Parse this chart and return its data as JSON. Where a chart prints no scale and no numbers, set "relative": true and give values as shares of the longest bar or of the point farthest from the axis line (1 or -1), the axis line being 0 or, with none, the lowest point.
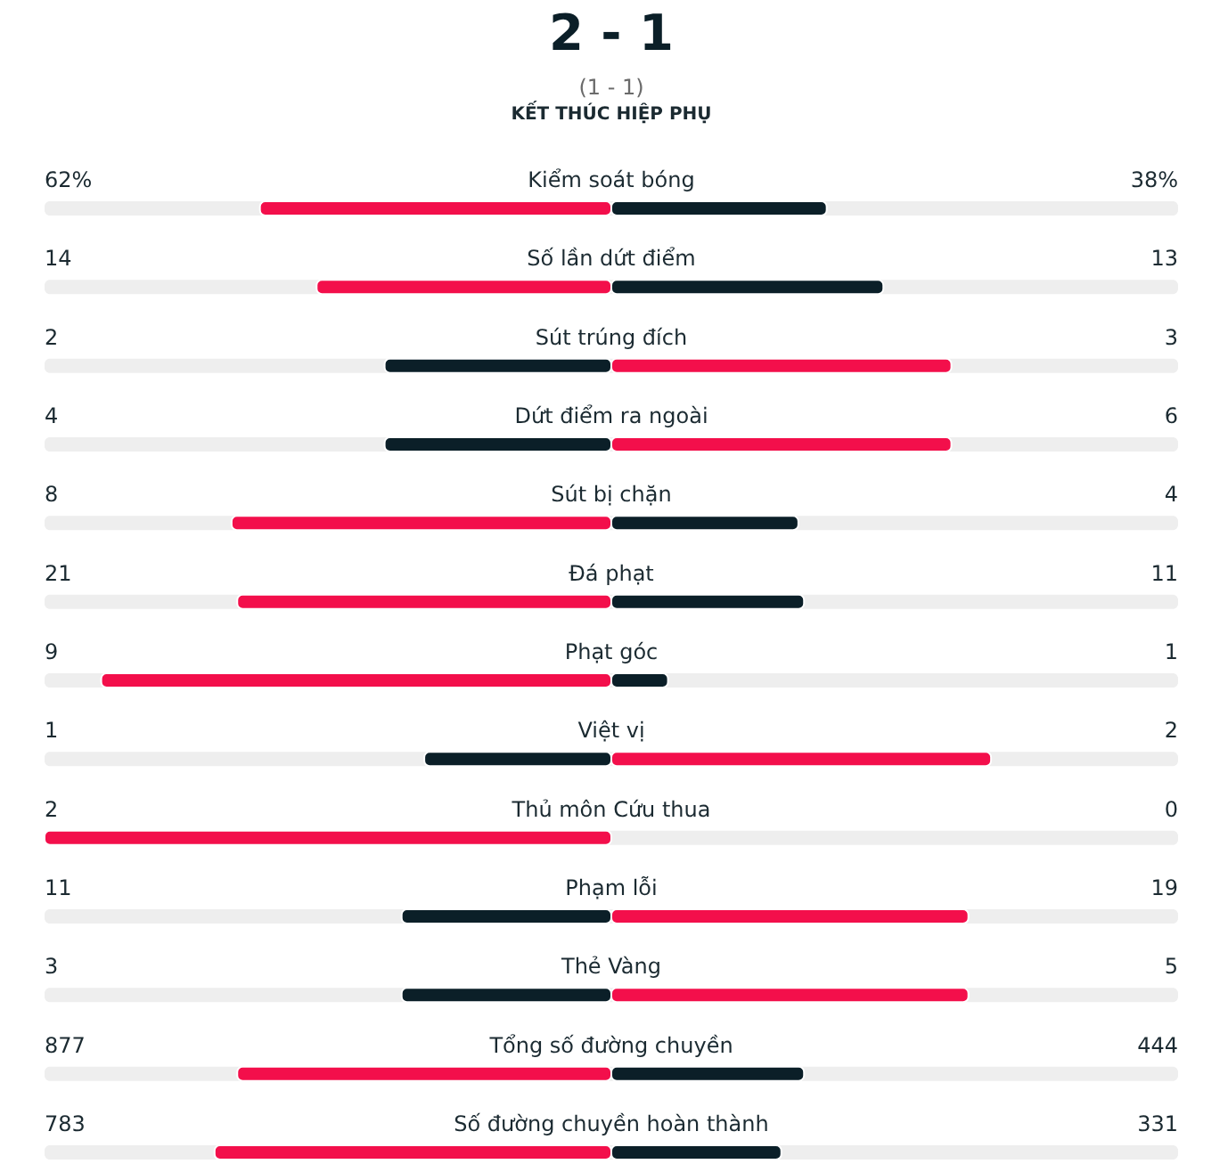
{
  "chart_data": {
    "type": "bar",
    "orientation": "horizontal",
    "relative": true,
    "stacked": true,
    "title": "2 - 1",
    "subtitle": "(1 - 1)",
    "categories": [
      "Kiểm soát bóng",
      "Số lần dứt điểm",
      "Sút trúng đích",
      "Dứt điểm ra ngoài",
      "Sút bị chặn",
      "Đá phạt",
      "Phạt góc",
      "Việt vị",
      "Thủ môn Cứu thua",
      "Phạm lỗi",
      "Thẻ Vàng",
      "Tổng số đường chuyền",
      "Số đường chuyền hoàn thành"
    ],
    "series": [
      {
        "values": [
          -0.62,
          -0.52,
          -0.4,
          -0.4,
          -0.67,
          -0.66,
          -0.9,
          -0.33,
          -1,
          -0.37,
          -0.37,
          -0.66,
          -0.7
        ],
        "colors": [
          "#f30f4b",
          "#f30f4b",
          "#0b1f28",
          "#0b1f28",
          "#f30f4b",
          "#f30f4b",
          "#f30f4b",
          "#0b1f28",
          "#f30f4b",
          "#0b1f28",
          "#0b1f28",
          "#f30f4b",
          "#f30f4b"
        ]
      },
      {
        "values": [
          0.38,
          0.48,
          0.6,
          0.6,
          0.33,
          0.34,
          0.1,
          0.67,
          0,
          0.63,
          0.63,
          0.34,
          0.3
        ],
        "colors": [
          "#0b1f28",
          "#0b1f28",
          "#f30f4b",
          "#f30f4b",
          "#0b1f28",
          "#0b1f28",
          "#0b1f28",
          "#f30f4b",
          "#0b1f28",
          "#f30f4b",
          "#f30f4b",
          "#0b1f28",
          "#0b1f28"
        ]
      }
    ],
    "annotations": [
      "KẾT THÚC HIỆP PHỤ",
      "62%",
      "38%",
      "14",
      "13",
      "2",
      "3",
      "4",
      "6",
      "8",
      "4",
      "21",
      "11",
      "9",
      "1",
      "1",
      "2",
      "2",
      "0",
      "11",
      "19",
      "3",
      "5",
      "877",
      "444",
      "783",
      "331"
    ]
  }
}
